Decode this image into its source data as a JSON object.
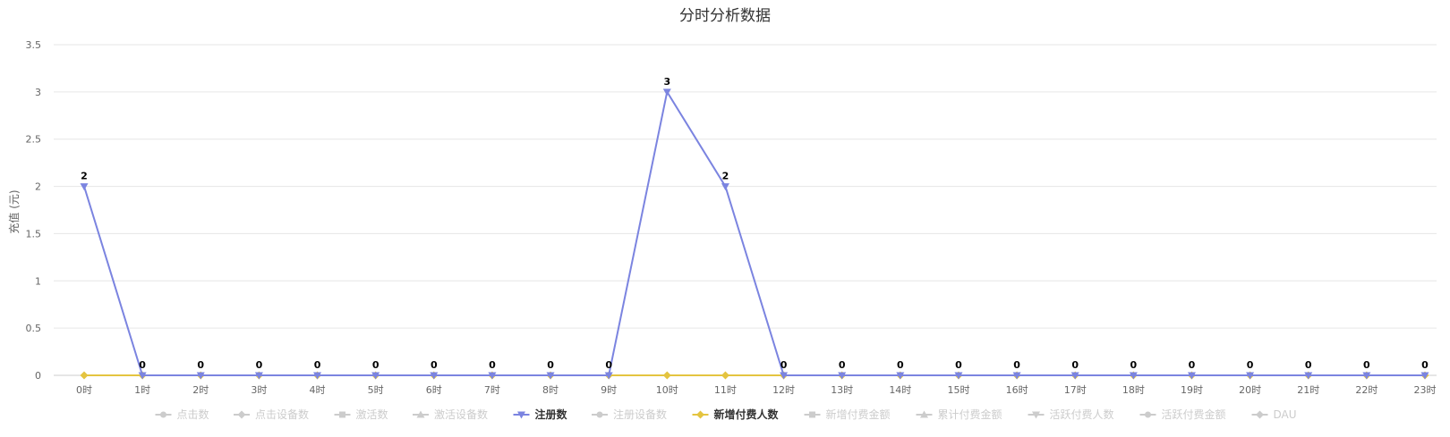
{
  "chart_data": {
    "type": "line",
    "title": "分时分析数据",
    "ylabel": "充值 (元)",
    "xlabel": "",
    "ylim": [
      0,
      3.5
    ],
    "yticks": [
      "0",
      "0.5",
      "1",
      "1.5",
      "2",
      "2.5",
      "3",
      "3.5"
    ],
    "categories": [
      "0时",
      "1时",
      "2时",
      "3时",
      "4时",
      "5时",
      "6时",
      "7时",
      "8时",
      "9时",
      "10时",
      "11时",
      "12时",
      "13时",
      "14时",
      "15时",
      "16时",
      "17时",
      "18时",
      "19时",
      "20时",
      "21时",
      "22时",
      "23时"
    ],
    "grid": true,
    "legend_position": "bottom",
    "series": [
      {
        "name": "注册数",
        "color": "#7b84e0",
        "marker": "triangle-down",
        "visible": true,
        "values": [
          2,
          0,
          0,
          0,
          0,
          0,
          0,
          0,
          0,
          0,
          3,
          2,
          0,
          0,
          0,
          0,
          0,
          0,
          0,
          0,
          0,
          0,
          0,
          0
        ]
      },
      {
        "name": "新增付费人数",
        "color": "#e4c440",
        "marker": "diamond",
        "visible": true,
        "values": [
          0,
          0,
          0,
          0,
          0,
          0,
          0,
          0,
          0,
          0,
          0,
          0,
          0,
          0,
          0,
          0,
          0,
          0,
          0,
          0,
          0,
          0,
          0,
          0
        ]
      }
    ],
    "legend": [
      {
        "name": "点击数",
        "marker": "circle",
        "active": false
      },
      {
        "name": "点击设备数",
        "marker": "diamond",
        "active": false
      },
      {
        "name": "激活数",
        "marker": "square",
        "active": false
      },
      {
        "name": "激活设备数",
        "marker": "triangle",
        "active": false
      },
      {
        "name": "注册数",
        "marker": "triangle-down",
        "active": true,
        "color": "#7b84e0"
      },
      {
        "name": "注册设备数",
        "marker": "circle",
        "active": false
      },
      {
        "name": "新增付费人数",
        "marker": "diamond",
        "active": true,
        "color": "#e4c440"
      },
      {
        "name": "新增付费金额",
        "marker": "square",
        "active": false
      },
      {
        "name": "累计付费金额",
        "marker": "triangle",
        "active": false
      },
      {
        "name": "活跃付费人数",
        "marker": "triangle-down",
        "active": false
      },
      {
        "name": "活跃付费金额",
        "marker": "circle",
        "active": false
      },
      {
        "name": "DAU",
        "marker": "diamond",
        "active": false
      }
    ],
    "inactive_color": "#cccccc"
  }
}
